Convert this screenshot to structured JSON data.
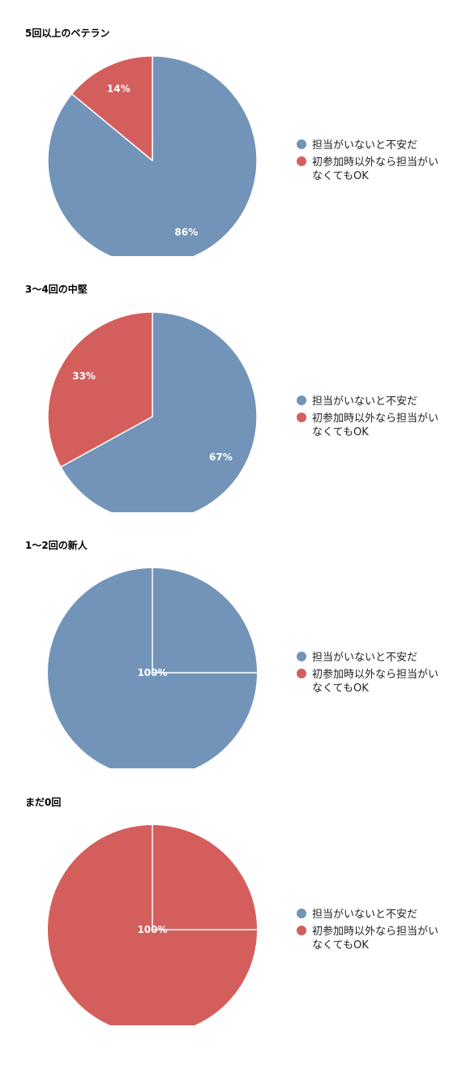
{
  "colors": {
    "series_0": "#7394b9",
    "series_1": "#d45e5c"
  },
  "chart_data": [
    {
      "type": "pie",
      "title": "5回以上のベテラン",
      "legend_position": "right",
      "slices": [
        {
          "label": "担当がいないと不安だ",
          "value": 86,
          "display": "86%"
        },
        {
          "label": "初参加時以外なら担当がいなくてもOK",
          "value": 14,
          "display": "14%"
        }
      ]
    },
    {
      "type": "pie",
      "title": "3〜4回の中堅",
      "legend_position": "right",
      "slices": [
        {
          "label": "担当がいないと不安だ",
          "value": 67,
          "display": "67%"
        },
        {
          "label": "初参加時以外なら担当がいなくてもOK",
          "value": 33,
          "display": "33%"
        }
      ]
    },
    {
      "type": "pie",
      "title": "1〜2回の新人",
      "legend_position": "right",
      "slices": [
        {
          "label": "担当がいないと不安だ",
          "value": 100,
          "display": "100%"
        },
        {
          "label": "初参加時以外なら担当がいなくてもOK",
          "value": 0,
          "display": ""
        }
      ]
    },
    {
      "type": "pie",
      "title": "まだ0回",
      "legend_position": "right",
      "slices": [
        {
          "label": "担当がいないと不安だ",
          "value": 0,
          "display": ""
        },
        {
          "label": "初参加時以外なら担当がいなくてもOK",
          "value": 100,
          "display": "100%"
        }
      ]
    }
  ]
}
